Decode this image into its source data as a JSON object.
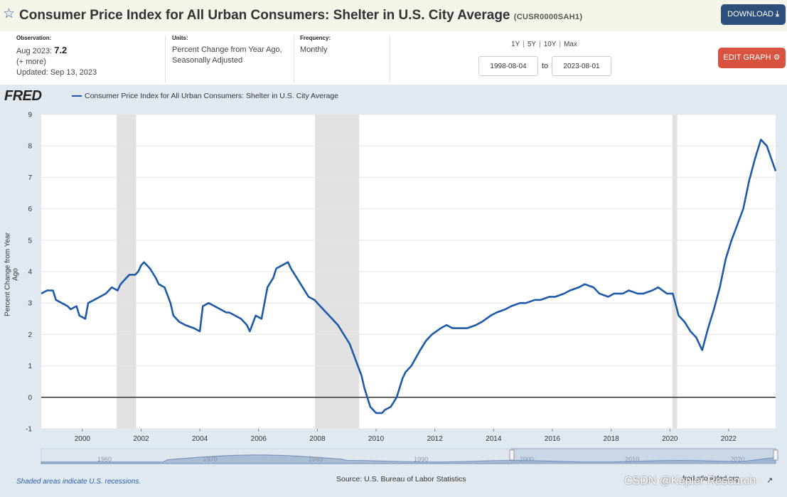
{
  "header": {
    "title": "Consumer Price Index for All Urban Consumers: Shelter in U.S. City Average",
    "series_id": "(CUSR0000SAH1)",
    "download_label": "DOWNLOAD",
    "edit_label": "EDIT GRAPH"
  },
  "meta": {
    "observation_label": "Observation:",
    "observation_date": "Aug 2023:",
    "observation_value": "7.2",
    "more": "(+ more)",
    "updated": "Updated: Sep 13, 2023",
    "units_label": "Units:",
    "units_line1": "Percent Change from Year Ago,",
    "units_line2": "Seasonally Adjusted",
    "frequency_label": "Frequency:",
    "frequency": "Monthly"
  },
  "ranges": [
    "1Y",
    "5Y",
    "10Y",
    "Max"
  ],
  "date_from": "1998-08-04",
  "date_to_label": "to",
  "date_to": "2023-08-01",
  "footer": {
    "recession_note": "Shaded areas indicate U.S. recessions.",
    "source": "Source: U.S. Bureau of Labor Statistics",
    "url": "fred.stlouisfed.org",
    "watermark": "CSDN @Kepler Research"
  },
  "colors": {
    "series": "#1f5aa8",
    "recession": "#e1e1e1",
    "plot_bg": "#ffffff",
    "frame_bg": "#e1e9f0"
  },
  "chart_data": {
    "type": "line",
    "logo": "FRED",
    "title": "",
    "legend": [
      "Consumer Price Index for All Urban Consumers: Shelter in U.S. City Average"
    ],
    "xlabel": "",
    "ylabel": "Percent Change from Year Ago",
    "ylim": [
      -1,
      9
    ],
    "xlim": [
      1998.6,
      2023.6
    ],
    "yticks": [
      -1,
      0,
      1,
      2,
      3,
      4,
      5,
      6,
      7,
      8,
      9
    ],
    "xticks": [
      2000,
      2002,
      2004,
      2006,
      2008,
      2010,
      2012,
      2014,
      2016,
      2018,
      2020,
      2022
    ],
    "grid": true,
    "recessions": [
      [
        2001.17,
        2001.83
      ],
      [
        2007.92,
        2009.42
      ],
      [
        2020.08,
        2020.25
      ]
    ],
    "series": [
      {
        "name": "Consumer Price Index for All Urban Consumers: Shelter in U.S. City Average",
        "x": [
          1998.6,
          1998.8,
          1999.0,
          1999.1,
          1999.3,
          1999.5,
          1999.6,
          1999.8,
          1999.9,
          2000.1,
          2000.2,
          2000.4,
          2000.6,
          2000.8,
          2001.0,
          2001.2,
          2001.3,
          2001.5,
          2001.6,
          2001.8,
          2001.9,
          2002.0,
          2002.1,
          2002.3,
          2002.5,
          2002.6,
          2002.8,
          2003.0,
          2003.1,
          2003.3,
          2003.5,
          2003.8,
          2004.0,
          2004.1,
          2004.3,
          2004.5,
          2004.7,
          2004.9,
          2005.0,
          2005.2,
          2005.4,
          2005.6,
          2005.7,
          2005.9,
          2006.1,
          2006.3,
          2006.5,
          2006.6,
          2006.8,
          2007.0,
          2007.1,
          2007.3,
          2007.5,
          2007.7,
          2007.9,
          2008.1,
          2008.3,
          2008.5,
          2008.7,
          2008.9,
          2009.1,
          2009.3,
          2009.5,
          2009.6,
          2009.8,
          2010.0,
          2010.2,
          2010.3,
          2010.5,
          2010.7,
          2010.9,
          2011.0,
          2011.2,
          2011.5,
          2011.7,
          2011.9,
          2012.2,
          2012.4,
          2012.6,
          2012.9,
          2013.1,
          2013.4,
          2013.6,
          2013.9,
          2014.1,
          2014.4,
          2014.6,
          2014.9,
          2015.1,
          2015.4,
          2015.6,
          2015.9,
          2016.1,
          2016.4,
          2016.6,
          2016.9,
          2017.1,
          2017.4,
          2017.6,
          2017.9,
          2018.1,
          2018.4,
          2018.6,
          2018.9,
          2019.1,
          2019.4,
          2019.6,
          2019.9,
          2020.1,
          2020.3,
          2020.5,
          2020.7,
          2020.9,
          2021.1,
          2021.3,
          2021.5,
          2021.7,
          2021.9,
          2022.1,
          2022.3,
          2022.5,
          2022.7,
          2022.9,
          2023.1,
          2023.3,
          2023.6
        ],
        "values": [
          3.3,
          3.4,
          3.4,
          3.1,
          3.0,
          2.9,
          2.8,
          2.9,
          2.6,
          2.5,
          3.0,
          3.1,
          3.2,
          3.3,
          3.5,
          3.4,
          3.6,
          3.8,
          3.9,
          3.9,
          4.0,
          4.2,
          4.3,
          4.1,
          3.8,
          3.6,
          3.5,
          3.0,
          2.6,
          2.4,
          2.3,
          2.2,
          2.1,
          2.9,
          3.0,
          2.9,
          2.8,
          2.7,
          2.7,
          2.6,
          2.5,
          2.3,
          2.1,
          2.6,
          2.5,
          3.5,
          3.8,
          4.1,
          4.2,
          4.3,
          4.1,
          3.8,
          3.5,
          3.2,
          3.1,
          2.9,
          2.7,
          2.5,
          2.3,
          2.0,
          1.7,
          1.2,
          0.7,
          0.3,
          -0.3,
          -0.5,
          -0.5,
          -0.4,
          -0.3,
          0.0,
          0.6,
          0.8,
          1.0,
          1.5,
          1.8,
          2.0,
          2.2,
          2.3,
          2.2,
          2.2,
          2.2,
          2.3,
          2.4,
          2.6,
          2.7,
          2.8,
          2.9,
          3.0,
          3.0,
          3.1,
          3.1,
          3.2,
          3.2,
          3.3,
          3.4,
          3.5,
          3.6,
          3.5,
          3.3,
          3.2,
          3.3,
          3.3,
          3.4,
          3.3,
          3.3,
          3.4,
          3.5,
          3.3,
          3.3,
          2.6,
          2.4,
          2.1,
          1.9,
          1.5,
          2.2,
          2.8,
          3.5,
          4.4,
          5.0,
          5.5,
          6.0,
          6.9,
          7.6,
          8.2,
          8.0,
          7.2
        ]
      }
    ]
  },
  "navigator": {
    "ticks": [
      "1960",
      "1970",
      "1980",
      "1990",
      "2000",
      "2010",
      "2020"
    ]
  }
}
